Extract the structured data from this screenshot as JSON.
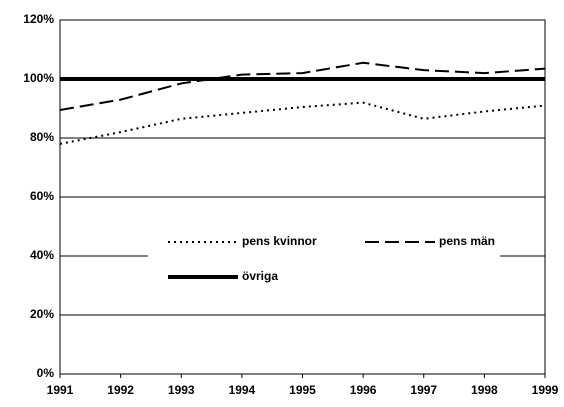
{
  "chart_data": {
    "type": "line",
    "x": [
      1991,
      1992,
      1993,
      1994,
      1995,
      1996,
      1997,
      1998,
      1999
    ],
    "xlim": [
      1991,
      1999
    ],
    "xticks": [
      1991,
      1992,
      1993,
      1994,
      1995,
      1996,
      1997,
      1998,
      1999
    ],
    "ylim": [
      0,
      120
    ],
    "yticks": [
      {
        "value": 0,
        "label": "0%"
      },
      {
        "value": 20,
        "label": "20%"
      },
      {
        "value": 40,
        "label": "40%"
      },
      {
        "value": 60,
        "label": "60%"
      },
      {
        "value": 80,
        "label": "80%"
      },
      {
        "value": 100,
        "label": "100%"
      },
      {
        "value": 120,
        "label": "120%"
      }
    ],
    "grid": true,
    "legend": "center",
    "series": [
      {
        "name": "pens kvinnor",
        "color": "#000000",
        "style": "dotted",
        "width": 2,
        "values": [
          78,
          82,
          86.5,
          88.5,
          90.5,
          92,
          86.5,
          89,
          91
        ]
      },
      {
        "name": "pens män",
        "color": "#000000",
        "style": "dashed",
        "width": 2,
        "values": [
          89.5,
          93,
          98.5,
          101.5,
          102,
          105.5,
          103,
          102,
          103.5
        ]
      },
      {
        "name": "övriga",
        "color": "#000000",
        "style": "solid",
        "width": 4,
        "values": [
          100,
          100,
          100,
          100,
          100,
          100,
          100,
          100,
          100
        ]
      }
    ]
  }
}
